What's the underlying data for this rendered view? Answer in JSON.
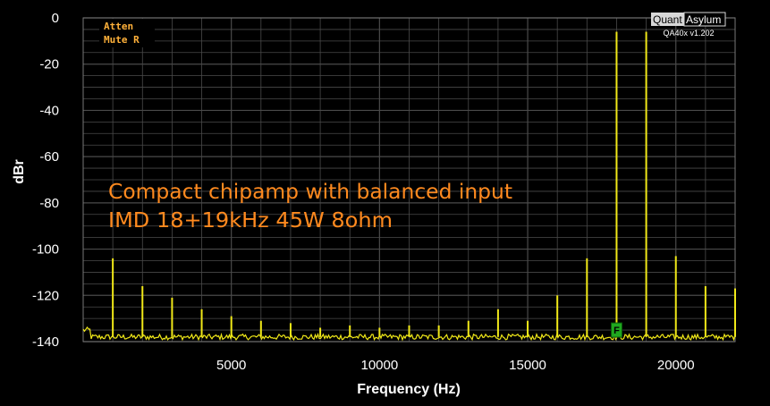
{
  "app": {
    "logo_left": "Quant",
    "logo_right": "Asylum",
    "version": "QA40x v1.202",
    "status_lines": [
      "Atten",
      "Mute R"
    ]
  },
  "colors": {
    "background": "#000000",
    "grid": "#4a4a4a",
    "trace": "#f0e818",
    "annotation": "#ff8a1f",
    "status": "#ffb13a",
    "marker": "#1fa81f"
  },
  "marker": {
    "label": "F",
    "x": 18000,
    "y": -135
  },
  "chart_data": {
    "type": "line",
    "title": "",
    "xlabel": "Frequency (Hz)",
    "ylabel": "dBr",
    "xlim": [
      0,
      22000
    ],
    "ylim": [
      -140,
      0
    ],
    "xticks": [
      5000,
      10000,
      15000,
      20000
    ],
    "yticks": [
      0,
      -20,
      -40,
      -60,
      -80,
      -100,
      -120,
      -140
    ],
    "grid": true,
    "annotations": [
      "Compact chipamp with balanced input",
      "IMD 18+19kHz 45W 8ohm"
    ],
    "noise_floor_dB": -138,
    "series": [
      {
        "points": [
          [
            1000,
            -104
          ],
          [
            2000,
            -116
          ],
          [
            3000,
            -121
          ],
          [
            4000,
            -126
          ],
          [
            5000,
            -129
          ],
          [
            6000,
            -131
          ],
          [
            7000,
            -132
          ],
          [
            8000,
            -134
          ],
          [
            9000,
            -133
          ],
          [
            10000,
            -134
          ],
          [
            11000,
            -133
          ],
          [
            12000,
            -133
          ],
          [
            13000,
            -131
          ],
          [
            14000,
            -126
          ],
          [
            15000,
            -131
          ],
          [
            16000,
            -120
          ],
          [
            17000,
            -104
          ],
          [
            18000,
            -6
          ],
          [
            19000,
            -6
          ],
          [
            20000,
            -103
          ],
          [
            21000,
            -116
          ],
          [
            22000,
            -117
          ]
        ]
      }
    ]
  }
}
